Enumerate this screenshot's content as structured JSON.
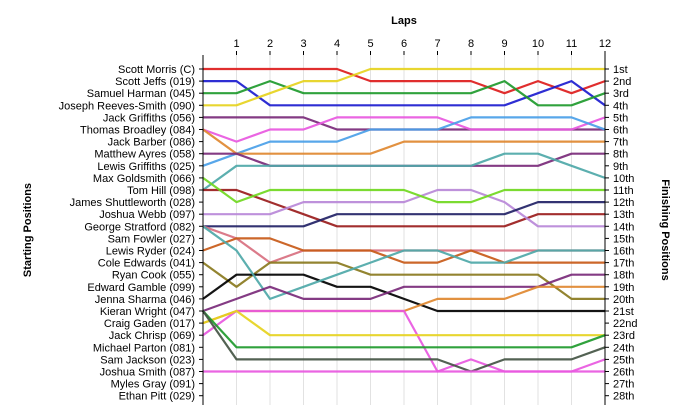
{
  "chart_data": {
    "type": "line",
    "title": "",
    "xlabel": "Laps",
    "ylabel_left": "Starting Positions",
    "ylabel_right": "Finishing Positions",
    "laps": [
      0,
      1,
      2,
      3,
      4,
      5,
      6,
      7,
      8,
      9,
      10,
      11,
      12
    ],
    "x_tick_labels": [
      "1",
      "2",
      "3",
      "4",
      "5",
      "6",
      "7",
      "8",
      "9",
      "10",
      "11",
      "12"
    ],
    "finishing_labels": [
      "1st",
      "2nd",
      "3rd",
      "4th",
      "5th",
      "6th",
      "7th",
      "8th",
      "9th",
      "10th",
      "11th",
      "12th",
      "13th",
      "14th",
      "15th",
      "16th",
      "17th",
      "18th",
      "19th",
      "20th",
      "21st",
      "22nd",
      "23rd",
      "24th",
      "25th",
      "26th",
      "27th",
      "28th"
    ],
    "grid": true,
    "series": [
      {
        "name": "Scott Morris (C)",
        "color": "#dd1c1c",
        "positions": [
          1,
          1,
          1,
          1,
          1,
          2,
          2,
          2,
          2,
          3,
          2,
          3,
          2
        ]
      },
      {
        "name": "Scott Jeffs (019)",
        "color": "#1c1ccf",
        "positions": [
          2,
          2,
          4,
          4,
          4,
          4,
          4,
          4,
          4,
          4,
          3,
          2,
          4
        ]
      },
      {
        "name": "Samuel Harman (045)",
        "color": "#1e9a2c",
        "positions": [
          3,
          3,
          2,
          3,
          3,
          3,
          3,
          3,
          3,
          2,
          4,
          4,
          3
        ]
      },
      {
        "name": "Joseph Reeves-Smith (090)",
        "color": "#e6d31e",
        "positions": [
          4,
          4,
          3,
          2,
          2,
          1,
          1,
          1,
          1,
          1,
          1,
          1,
          1
        ]
      },
      {
        "name": "Jack Griffiths (056)",
        "color": "#7a2a7a",
        "positions": [
          5,
          5,
          5,
          5,
          6,
          6,
          6,
          6,
          6,
          6,
          6,
          6,
          6
        ]
      },
      {
        "name": "Thomas Broadley (084)",
        "color": "#e858e0",
        "positions": [
          6,
          7,
          6,
          6,
          5,
          5,
          5,
          5,
          6,
          6,
          6,
          6,
          5
        ]
      },
      {
        "name": "Jack Barber (086)",
        "color": "#4aa0e8",
        "positions": [
          9,
          8,
          7,
          7,
          7,
          6,
          6,
          6,
          5,
          5,
          5,
          5,
          6
        ]
      },
      {
        "name": "Matthew Ayres (058)",
        "color": "#e08830",
        "positions": [
          6,
          8,
          8,
          8,
          8,
          8,
          7,
          7,
          7,
          7,
          7,
          7,
          7
        ]
      },
      {
        "name": "Lewis Griffiths (025)",
        "color": "#7a2a7a",
        "positions": [
          8,
          8,
          9,
          9,
          9,
          9,
          9,
          9,
          9,
          9,
          9,
          8,
          8
        ]
      },
      {
        "name": "Max Goldsmith (066)",
        "color": "#4ea8a8",
        "positions": [
          11,
          9,
          9,
          9,
          9,
          9,
          9,
          9,
          9,
          8,
          8,
          9,
          10
        ]
      },
      {
        "name": "Tom Hill (098)",
        "color": "#9a1c1c",
        "positions": [
          11,
          11,
          12,
          13,
          14,
          14,
          14,
          14,
          14,
          14,
          13,
          13,
          13
        ]
      },
      {
        "name": "James Shuttleworth (028)",
        "color": "#b888d8",
        "positions": [
          13,
          13,
          13,
          12,
          12,
          12,
          12,
          11,
          11,
          12,
          14,
          14,
          14
        ]
      },
      {
        "name": "Joshua Webb (097)",
        "color": "#222266",
        "positions": [
          14,
          14,
          14,
          14,
          13,
          13,
          13,
          13,
          13,
          13,
          12,
          12,
          12
        ]
      },
      {
        "name": "George Stratford (082)",
        "color": "#d87080",
        "positions": [
          14,
          15,
          17,
          16,
          16,
          16,
          16,
          16,
          16,
          16,
          16,
          16,
          16
        ]
      },
      {
        "name": "Sam Fowler (027)",
        "color": "#c85a18",
        "positions": [
          16,
          15,
          15,
          16,
          16,
          16,
          17,
          17,
          16,
          17,
          17,
          17,
          17
        ]
      },
      {
        "name": "Lewis Ryder (024)",
        "color": "#70d820",
        "positions": [
          10,
          12,
          11,
          11,
          11,
          11,
          11,
          12,
          12,
          11,
          11,
          11,
          11
        ]
      },
      {
        "name": "Cole Edwards (041)",
        "color": "#8a7a1e",
        "positions": [
          17,
          19,
          17,
          17,
          17,
          18,
          18,
          18,
          18,
          18,
          18,
          20,
          20
        ]
      },
      {
        "name": "Ryan Cook (055)",
        "color": "#000000",
        "positions": [
          20,
          18,
          18,
          18,
          19,
          19,
          20,
          21,
          21,
          21,
          21,
          21,
          21
        ]
      },
      {
        "name": "Edward Gamble (099)",
        "color": "#4ea8a8",
        "positions": [
          14,
          16,
          20,
          19,
          18,
          17,
          16,
          16,
          17,
          17,
          16,
          16,
          16
        ]
      },
      {
        "name": "Jenna Sharma (046)",
        "color": "#7a2a7a",
        "positions": [
          21,
          20,
          19,
          20,
          20,
          20,
          19,
          19,
          19,
          19,
          19,
          18,
          18
        ]
      },
      {
        "name": "Kieran Wright (047)",
        "color": "#e08830",
        "positions": [
          22,
          21,
          21,
          21,
          21,
          21,
          21,
          20,
          20,
          20,
          19,
          19,
          19
        ]
      },
      {
        "name": "Craig Gaden (017)",
        "color": "#e858e0",
        "positions": [
          23,
          21,
          21,
          21,
          21,
          21,
          21,
          26,
          25,
          26,
          26,
          26,
          25
        ]
      },
      {
        "name": "Jack Chrisp (069)",
        "color": "#e6d31e",
        "positions": [
          22,
          21,
          23,
          23,
          23,
          23,
          23,
          23,
          23,
          23,
          23,
          23,
          23
        ]
      },
      {
        "name": "Michael Parton (081)",
        "color": "#1e9a2c",
        "positions": [
          21,
          24,
          24,
          24,
          24,
          24,
          24,
          24,
          24,
          24,
          24,
          24,
          23
        ]
      },
      {
        "name": "Sam Jackson (023)",
        "color": "#445544",
        "positions": [
          21,
          25,
          25,
          25,
          25,
          25,
          25,
          25,
          26,
          25,
          25,
          25,
          24
        ]
      },
      {
        "name": "Joshua Smith (087)",
        "color": "#e858e0",
        "positions": [
          26,
          26,
          26,
          26,
          26,
          26,
          26,
          26,
          26,
          26,
          26,
          26,
          26
        ]
      },
      {
        "name": "Myles Gray (091)",
        "color": "#999999",
        "positions": []
      },
      {
        "name": "Ethan Pitt (029)",
        "color": "#999999",
        "positions": []
      }
    ]
  }
}
